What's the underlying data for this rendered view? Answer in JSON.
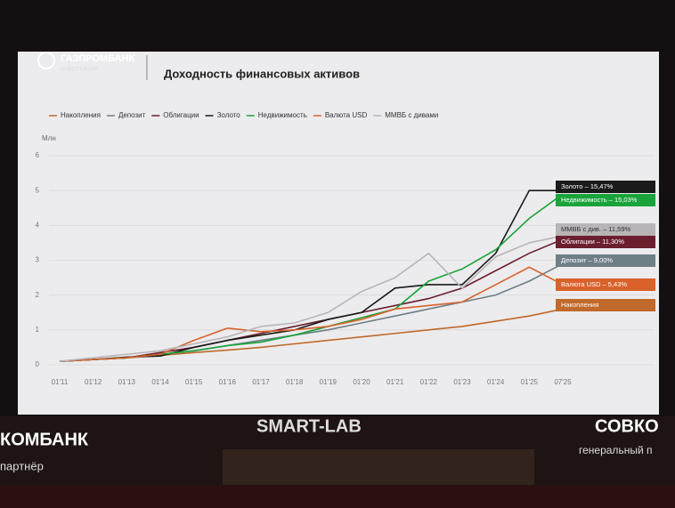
{
  "header": {
    "brand": "ГАЗПРОМБАНК",
    "brand_sub": "ИНВЕСТИЦИИ",
    "title": "Доходность финансовых активов"
  },
  "chart_data": {
    "type": "line",
    "y_label": "Млн",
    "categories": [
      "01'11",
      "01'12",
      "01'13",
      "01'14",
      "01'15",
      "01'16",
      "01'17",
      "01'18",
      "01'19",
      "01'20",
      "01'21",
      "01'22",
      "01'23",
      "01'24",
      "01'25",
      "07'25"
    ],
    "ylim": [
      0,
      6
    ],
    "yticks": [
      0,
      1,
      2,
      3,
      4,
      5,
      6
    ],
    "grid": true,
    "series": [
      {
        "name": "Накопления",
        "color": "#c0692a",
        "label": "Накопления",
        "values": [
          0.1,
          0.15,
          0.2,
          0.27,
          0.35,
          0.42,
          0.5,
          0.6,
          0.7,
          0.8,
          0.9,
          1.0,
          1.1,
          1.25,
          1.4,
          1.6
        ]
      },
      {
        "name": "Депозит",
        "color": "#6e7f86",
        "label": "Депозит – 9,00%",
        "values": [
          0.1,
          0.15,
          0.2,
          0.3,
          0.4,
          0.55,
          0.7,
          0.85,
          1.0,
          1.2,
          1.4,
          1.6,
          1.8,
          2.0,
          2.4,
          2.9
        ]
      },
      {
        "name": "Облигации",
        "color": "#6b1f2e",
        "label": "Облигации – 11,30%",
        "values": [
          0.1,
          0.15,
          0.2,
          0.35,
          0.5,
          0.7,
          0.9,
          1.1,
          1.3,
          1.5,
          1.7,
          1.9,
          2.2,
          2.7,
          3.2,
          3.6
        ]
      },
      {
        "name": "Золото",
        "color": "#1a1a1a",
        "label": "Золото – 15,47%",
        "values": [
          0.1,
          0.15,
          0.22,
          0.25,
          0.5,
          0.7,
          0.85,
          1.0,
          1.3,
          1.5,
          2.2,
          2.3,
          2.3,
          3.2,
          5.0,
          5.0
        ]
      },
      {
        "name": "Недвижимость",
        "color": "#1aa33a",
        "label": "Недвижимость – 15,03%",
        "values": [
          0.1,
          0.15,
          0.2,
          0.3,
          0.4,
          0.55,
          0.65,
          0.85,
          1.1,
          1.35,
          1.6,
          2.4,
          2.75,
          3.3,
          4.2,
          4.9
        ]
      },
      {
        "name": "Валюта USD",
        "color": "#d9622b",
        "label": "Валюта USD – 5,43%",
        "values": [
          0.1,
          0.15,
          0.2,
          0.3,
          0.7,
          1.05,
          0.95,
          1.0,
          1.1,
          1.3,
          1.6,
          1.7,
          1.8,
          2.3,
          2.8,
          2.3
        ]
      },
      {
        "name": "ММВБ с дивами",
        "color": "#b9b4b8",
        "label": "ММВБ с див. – 11,59%",
        "values": [
          0.1,
          0.2,
          0.3,
          0.4,
          0.6,
          0.8,
          1.1,
          1.2,
          1.5,
          2.1,
          2.5,
          3.2,
          2.2,
          3.1,
          3.5,
          3.7
        ]
      }
    ]
  },
  "stage": {
    "event": "SMART-LAB",
    "sponsor_left": "КОМБАНК",
    "sponsor_left_sub": "партнёр",
    "sponsor_right": "СОВКО",
    "sponsor_right_sub": "генеральный п"
  }
}
